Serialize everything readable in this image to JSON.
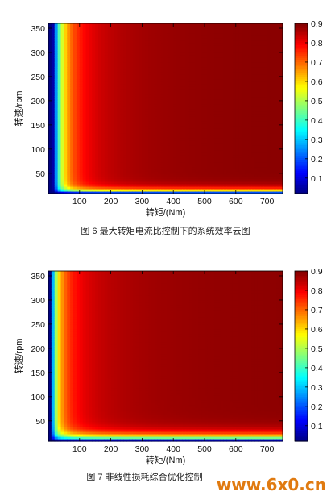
{
  "figures": [
    {
      "caption": "图 6 最大转矩电流比控制下的系统效率云图",
      "chart_data": {
        "type": "heatmap",
        "title": "",
        "xlabel": "转矩/(Nm)",
        "ylabel": "转速/rpm",
        "xlim": [
          0,
          750
        ],
        "ylim": [
          8,
          360
        ],
        "xticks": [
          100,
          200,
          300,
          400,
          500,
          600,
          700
        ],
        "yticks": [
          50,
          100,
          150,
          200,
          250,
          300,
          350
        ],
        "colorbar": {
          "min": 0.02,
          "max": 0.9,
          "ticks": [
            0.1,
            0.2,
            0.3,
            0.4,
            0.5,
            0.6,
            0.7,
            0.8,
            0.9
          ],
          "colormap": "jet"
        },
        "model": {
          "peak": 0.9,
          "a": 0.16,
          "b": 1.4,
          "c": 0.17,
          "speed_offset": 9,
          "torque_offset": 2
        }
      }
    },
    {
      "caption": "图 7 非线性损耗综合优化控制",
      "chart_data": {
        "type": "heatmap",
        "title": "",
        "xlabel": "转矩/(Nm)",
        "ylabel": "转速/rpm",
        "xlim": [
          0,
          750
        ],
        "ylim": [
          8,
          360
        ],
        "xticks": [
          100,
          200,
          300,
          400,
          500,
          600,
          700
        ],
        "yticks": [
          50,
          100,
          150,
          200,
          250,
          300,
          350
        ],
        "colorbar": {
          "min": 0.02,
          "max": 0.9,
          "ticks": [
            0.1,
            0.2,
            0.3,
            0.4,
            0.5,
            0.6,
            0.7,
            0.8,
            0.9
          ],
          "colormap": "jet"
        },
        "model": {
          "peak": 0.9,
          "a": 0.12,
          "b": 1.1,
          "c": 0.11,
          "speed_offset": 9,
          "torque_offset": 2
        }
      }
    }
  ],
  "watermark": "www.6x0.cn"
}
